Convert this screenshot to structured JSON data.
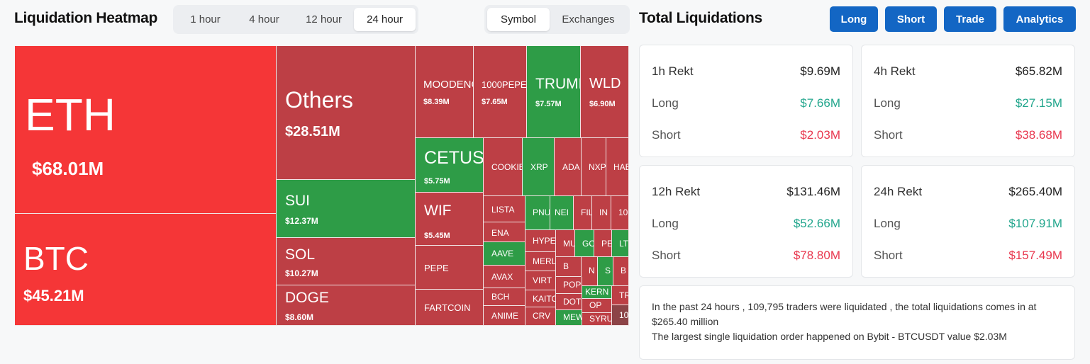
{
  "header": {
    "title": "Liquidation Heatmap",
    "time_tabs": [
      "1 hour",
      "4 hour",
      "12 hour",
      "24 hour"
    ],
    "active_time_tab": "24 hour",
    "group_tabs": [
      "Symbol",
      "Exchanges"
    ],
    "active_group_tab": "Symbol"
  },
  "right": {
    "title": "Total Liquidations",
    "buttons": [
      "Long",
      "Short",
      "Trade",
      "Analytics"
    ]
  },
  "colors": {
    "accent": "#1366c4",
    "long_red": "#bd3f45",
    "bright_red": "#f53637",
    "green": "#2e9c47",
    "positive": "#22a68d",
    "negative": "#e8384f"
  },
  "heatmap": [
    {
      "symbol": "ETH",
      "value": "$68.01M",
      "color": "bright"
    },
    {
      "symbol": "BTC",
      "value": "$45.21M",
      "color": "bright"
    },
    {
      "symbol": "Others",
      "value": "$28.51M",
      "color": "red"
    },
    {
      "symbol": "SUI",
      "value": "$12.37M",
      "color": "green"
    },
    {
      "symbol": "SOL",
      "value": "$10.27M",
      "color": "red"
    },
    {
      "symbol": "DOGE",
      "value": "$8.60M",
      "color": "red"
    },
    {
      "symbol": "MOODENG",
      "value": "$8.39M",
      "color": "red"
    },
    {
      "symbol": "1000PEPE",
      "value": "$7.65M",
      "color": "red"
    },
    {
      "symbol": "TRUMP",
      "value": "$7.57M",
      "color": "green"
    },
    {
      "symbol": "WLD",
      "value": "$6.90M",
      "color": "red"
    },
    {
      "symbol": "CETUS",
      "value": "$5.75M",
      "color": "green"
    },
    {
      "symbol": "WIF",
      "value": "$5.45M",
      "color": "red"
    },
    {
      "symbol": "PEPE",
      "value": "",
      "color": "red"
    },
    {
      "symbol": "FARTCOIN",
      "value": "",
      "color": "red"
    },
    {
      "symbol": "COOKIE",
      "value": "",
      "color": "red"
    },
    {
      "symbol": "XRP",
      "value": "",
      "color": "green"
    },
    {
      "symbol": "ADA",
      "value": "",
      "color": "red"
    },
    {
      "symbol": "NXP",
      "value": "",
      "color": "red"
    },
    {
      "symbol": "HAE",
      "value": "",
      "color": "red"
    },
    {
      "symbol": "LISTA",
      "value": "",
      "color": "red"
    },
    {
      "symbol": "ENA",
      "value": "",
      "color": "red"
    },
    {
      "symbol": "AAVE",
      "value": "",
      "color": "green"
    },
    {
      "symbol": "AVAX",
      "value": "",
      "color": "red"
    },
    {
      "symbol": "BCH",
      "value": "",
      "color": "red"
    },
    {
      "symbol": "ANIME",
      "value": "",
      "color": "red"
    },
    {
      "symbol": "PNU",
      "value": "",
      "color": "green"
    },
    {
      "symbol": "NEI",
      "value": "",
      "color": "green"
    },
    {
      "symbol": "FIL",
      "value": "",
      "color": "red"
    },
    {
      "symbol": "IN",
      "value": "",
      "color": "red"
    },
    {
      "symbol": "10",
      "value": "",
      "color": "red"
    },
    {
      "symbol": "HYPE",
      "value": "",
      "color": "red"
    },
    {
      "symbol": "MU",
      "value": "",
      "color": "red"
    },
    {
      "symbol": "GO",
      "value": "",
      "color": "green"
    },
    {
      "symbol": "PE",
      "value": "",
      "color": "red"
    },
    {
      "symbol": "LT",
      "value": "",
      "color": "green"
    },
    {
      "symbol": "MERL",
      "value": "",
      "color": "red"
    },
    {
      "symbol": "VIRT",
      "value": "",
      "color": "red"
    },
    {
      "symbol": "B",
      "value": "",
      "color": "red"
    },
    {
      "symbol": "N",
      "value": "",
      "color": "red"
    },
    {
      "symbol": "S",
      "value": "",
      "color": "green"
    },
    {
      "symbol": "B",
      "value": "",
      "color": "red"
    },
    {
      "symbol": "POP",
      "value": "",
      "color": "red"
    },
    {
      "symbol": "KAITO",
      "value": "",
      "color": "red"
    },
    {
      "symbol": "DOT",
      "value": "",
      "color": "red"
    },
    {
      "symbol": "KERN",
      "value": "",
      "color": "green"
    },
    {
      "symbol": "TR",
      "value": "",
      "color": "red"
    },
    {
      "symbol": "OP",
      "value": "",
      "color": "red"
    },
    {
      "symbol": "CRV",
      "value": "",
      "color": "red"
    },
    {
      "symbol": "MEW",
      "value": "",
      "color": "green"
    },
    {
      "symbol": "SYRU",
      "value": "",
      "color": "red"
    },
    {
      "symbol": "10",
      "value": "",
      "color": "brown"
    }
  ],
  "rekt_cards": [
    {
      "label": "1h Rekt",
      "total": "$9.69M",
      "long_label": "Long",
      "long": "$7.66M",
      "short_label": "Short",
      "short": "$2.03M"
    },
    {
      "label": "4h Rekt",
      "total": "$65.82M",
      "long_label": "Long",
      "long": "$27.15M",
      "short_label": "Short",
      "short": "$38.68M"
    },
    {
      "label": "12h Rekt",
      "total": "$131.46M",
      "long_label": "Long",
      "long": "$52.66M",
      "short_label": "Short",
      "short": "$78.80M"
    },
    {
      "label": "24h Rekt",
      "total": "$265.40M",
      "long_label": "Long",
      "long": "$107.91M",
      "short_label": "Short",
      "short": "$157.49M"
    }
  ],
  "summary": {
    "line1": "In the past 24 hours , 109,795 traders were liquidated , the total liquidations comes in at $265.40 million",
    "line2": "The largest single liquidation order happened on Bybit - BTCUSDT value $2.03M"
  }
}
